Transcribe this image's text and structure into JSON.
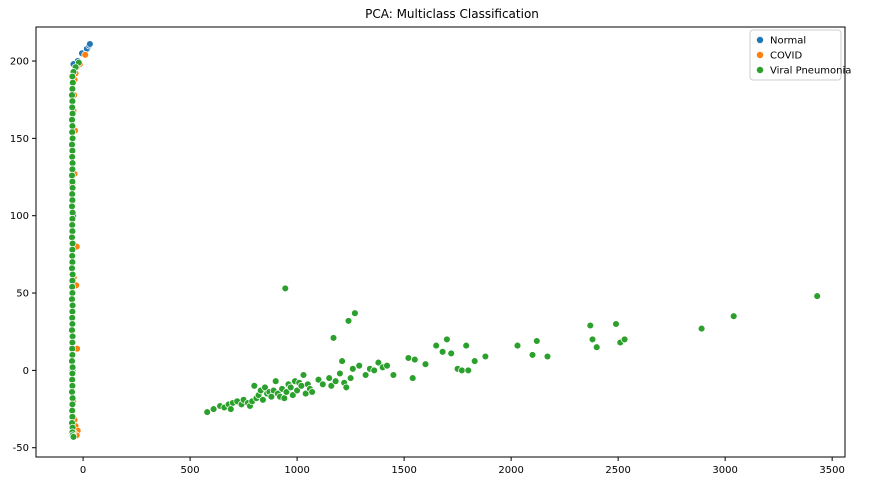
{
  "chart_data": {
    "type": "scatter",
    "title": "PCA: Multiclass Classification",
    "xlabel": "",
    "ylabel": "",
    "xlim": [
      -220,
      3560
    ],
    "ylim": [
      -56,
      222
    ],
    "xticks": [
      0,
      500,
      1000,
      1500,
      2000,
      2500,
      3000,
      3500
    ],
    "yticks": [
      -50,
      0,
      50,
      100,
      150,
      200
    ],
    "grid": false,
    "legend": {
      "placement": "top-right",
      "entries": [
        "Normal",
        "COVID",
        "Viral Pneumonia"
      ]
    },
    "series": [
      {
        "name": "Normal",
        "color": "#1f77b4",
        "points": [
          [
            -5,
            205
          ],
          [
            18,
            208
          ],
          [
            28,
            210
          ],
          [
            32,
            211
          ],
          [
            -25,
            200
          ],
          [
            -45,
            198
          ],
          [
            -50,
            190
          ],
          [
            -48,
            150
          ],
          [
            -46,
            100
          ],
          [
            -47,
            50
          ],
          [
            -49,
            0
          ],
          [
            -48,
            -30
          ]
        ]
      },
      {
        "name": "COVID",
        "color": "#ff7f0e",
        "points": [
          [
            10,
            204
          ],
          [
            -15,
            198
          ],
          [
            -30,
            196
          ],
          [
            -35,
            192
          ],
          [
            -40,
            188
          ],
          [
            -42,
            178
          ],
          [
            -45,
            168
          ],
          [
            -38,
            155
          ],
          [
            -40,
            127
          ],
          [
            -30,
            80
          ],
          [
            -32,
            55
          ],
          [
            -28,
            14
          ],
          [
            -40,
            -32
          ],
          [
            -35,
            -36
          ],
          [
            -25,
            -39
          ],
          [
            -30,
            -42
          ],
          [
            -45,
            -40
          ],
          [
            -50,
            120
          ],
          [
            -44,
            60
          ],
          [
            -46,
            -20
          ]
        ]
      },
      {
        "name": "Viral Pneumonia",
        "color": "#2ca02c",
        "points": [
          [
            -20,
            199
          ],
          [
            -35,
            196
          ],
          [
            -45,
            193
          ],
          [
            -50,
            190
          ],
          [
            -48,
            186
          ],
          [
            -50,
            182
          ],
          [
            -52,
            178
          ],
          [
            -50,
            174
          ],
          [
            -51,
            170
          ],
          [
            -49,
            166
          ],
          [
            -52,
            162
          ],
          [
            -50,
            158
          ],
          [
            -51,
            154
          ],
          [
            -49,
            150
          ],
          [
            -52,
            146
          ],
          [
            -50,
            142
          ],
          [
            -51,
            138
          ],
          [
            -49,
            134
          ],
          [
            -50,
            130
          ],
          [
            -52,
            126
          ],
          [
            -50,
            122
          ],
          [
            -49,
            118
          ],
          [
            -51,
            114
          ],
          [
            -50,
            110
          ],
          [
            -52,
            106
          ],
          [
            -49,
            102
          ],
          [
            -50,
            98
          ],
          [
            -51,
            94
          ],
          [
            -50,
            90
          ],
          [
            -52,
            86
          ],
          [
            -49,
            82
          ],
          [
            -50,
            78
          ],
          [
            -51,
            74
          ],
          [
            -50,
            70
          ],
          [
            -52,
            66
          ],
          [
            -49,
            62
          ],
          [
            -50,
            58
          ],
          [
            -51,
            54
          ],
          [
            -50,
            50
          ],
          [
            -52,
            46
          ],
          [
            -49,
            42
          ],
          [
            -50,
            38
          ],
          [
            -51,
            34
          ],
          [
            -50,
            30
          ],
          [
            -52,
            26
          ],
          [
            -49,
            22
          ],
          [
            -50,
            18
          ],
          [
            -51,
            14
          ],
          [
            -50,
            10
          ],
          [
            -52,
            6
          ],
          [
            -49,
            2
          ],
          [
            -50,
            -2
          ],
          [
            -51,
            -6
          ],
          [
            -50,
            -10
          ],
          [
            -52,
            -14
          ],
          [
            -49,
            -18
          ],
          [
            -50,
            -22
          ],
          [
            -51,
            -26
          ],
          [
            -50,
            -30
          ],
          [
            -52,
            -34
          ],
          [
            -49,
            -37
          ],
          [
            -50,
            -40
          ],
          [
            -48,
            -42
          ],
          [
            -45,
            -43
          ],
          [
            580,
            -27
          ],
          [
            610,
            -25
          ],
          [
            640,
            -23
          ],
          [
            660,
            -24
          ],
          [
            680,
            -22
          ],
          [
            700,
            -21
          ],
          [
            690,
            -25
          ],
          [
            720,
            -20
          ],
          [
            740,
            -22
          ],
          [
            750,
            -19
          ],
          [
            770,
            -21
          ],
          [
            780,
            -23
          ],
          [
            790,
            -20
          ],
          [
            800,
            -10
          ],
          [
            810,
            -18
          ],
          [
            820,
            -16
          ],
          [
            830,
            -13
          ],
          [
            840,
            -19
          ],
          [
            850,
            -11
          ],
          [
            860,
            -15
          ],
          [
            870,
            -14
          ],
          [
            880,
            -17
          ],
          [
            890,
            -13
          ],
          [
            900,
            -7
          ],
          [
            910,
            -15
          ],
          [
            920,
            -17
          ],
          [
            930,
            -12
          ],
          [
            940,
            -18
          ],
          [
            945,
            53
          ],
          [
            950,
            -14
          ],
          [
            960,
            -9
          ],
          [
            970,
            -11
          ],
          [
            980,
            -16
          ],
          [
            990,
            -7
          ],
          [
            1000,
            -13
          ],
          [
            1010,
            -8
          ],
          [
            1020,
            -10
          ],
          [
            1030,
            -3
          ],
          [
            1040,
            -15
          ],
          [
            1050,
            -9
          ],
          [
            1060,
            -12
          ],
          [
            1070,
            -14
          ],
          [
            1100,
            -6
          ],
          [
            1120,
            -9
          ],
          [
            1150,
            -5
          ],
          [
            1160,
            -10
          ],
          [
            1170,
            21
          ],
          [
            1180,
            -7
          ],
          [
            1200,
            -2
          ],
          [
            1210,
            6
          ],
          [
            1220,
            -8
          ],
          [
            1230,
            -11
          ],
          [
            1240,
            32
          ],
          [
            1250,
            -5
          ],
          [
            1260,
            1
          ],
          [
            1270,
            37
          ],
          [
            1290,
            3
          ],
          [
            1320,
            -3
          ],
          [
            1340,
            1
          ],
          [
            1360,
            0
          ],
          [
            1380,
            5
          ],
          [
            1400,
            2
          ],
          [
            1420,
            3
          ],
          [
            1450,
            -3
          ],
          [
            1520,
            8
          ],
          [
            1540,
            -5
          ],
          [
            1550,
            7
          ],
          [
            1600,
            4
          ],
          [
            1650,
            16
          ],
          [
            1680,
            12
          ],
          [
            1700,
            20
          ],
          [
            1720,
            11
          ],
          [
            1750,
            1
          ],
          [
            1770,
            0
          ],
          [
            1790,
            16
          ],
          [
            1800,
            0
          ],
          [
            1830,
            6
          ],
          [
            1880,
            9
          ],
          [
            2030,
            16
          ],
          [
            2100,
            10
          ],
          [
            2120,
            19
          ],
          [
            2170,
            9
          ],
          [
            2370,
            29
          ],
          [
            2380,
            20
          ],
          [
            2400,
            15
          ],
          [
            2490,
            30
          ],
          [
            2510,
            18
          ],
          [
            2530,
            20
          ],
          [
            2890,
            27
          ],
          [
            3040,
            35
          ],
          [
            3430,
            48
          ]
        ]
      }
    ]
  }
}
